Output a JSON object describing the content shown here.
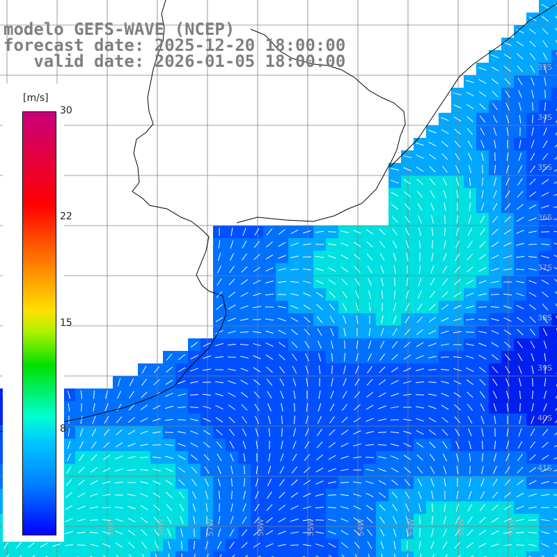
{
  "title": {
    "line1": "modelo GEFS-WAVE (NCEP)",
    "line2": "forecast date: 2025-12-20 18:00:00",
    "line3": "   valid date: 2026-01-05 18:00:00"
  },
  "legend": {
    "units": "[m/s]",
    "ticks": [
      "30",
      "22",
      "15",
      "8"
    ]
  },
  "lat_labels": [
    "33S",
    "34S",
    "35S",
    "36S",
    "37S",
    "38S",
    "39S",
    "40S",
    "41S"
  ],
  "lon_labels": [
    "60W",
    "59W",
    "58W",
    "57W",
    "56W",
    "55W",
    "54W",
    "53W",
    "52W",
    "51W"
  ],
  "colors": {
    "wind_weak": "#0000ff",
    "wind_mid": "#00c8ff",
    "wind_strong": "#00e000",
    "land": "#ffffff",
    "coast": "#000000",
    "grid": "#808080",
    "vector": "#ffffff"
  }
}
